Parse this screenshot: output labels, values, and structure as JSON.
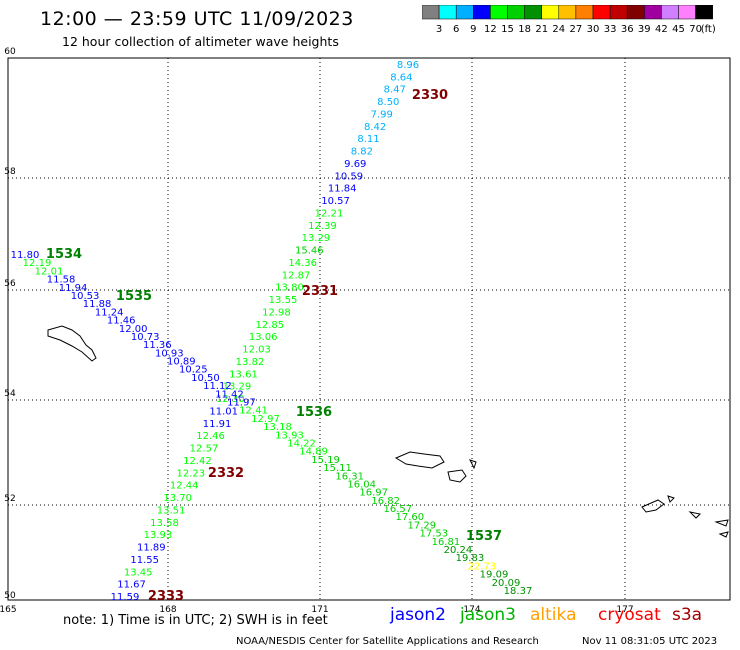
{
  "header": {
    "title": "12:00 — 23:59 UTC 11/09/2023",
    "subtitle": "12 hour collection of altimeter wave heights"
  },
  "colorbar": {
    "colors": [
      "#808080",
      "#00ffff",
      "#00b0ff",
      "#0000ff",
      "#00ff00",
      "#00d000",
      "#009000",
      "#ffff00",
      "#ffc000",
      "#ff8000",
      "#ff0000",
      "#c00000",
      "#800000",
      "#a000a0",
      "#d080ff",
      "#ff80ff",
      "#000000"
    ],
    "labels": [
      "3",
      "6",
      "9",
      "12",
      "15",
      "18",
      "21",
      "24",
      "27",
      "30",
      "33",
      "36",
      "39",
      "42",
      "45",
      "70"
    ],
    "unit": "(ft)"
  },
  "axes": {
    "lat_labels": [
      "60",
      "58",
      "56",
      "54",
      "52",
      "50"
    ],
    "lon_labels": [
      "165",
      "168",
      "171",
      "174",
      "177"
    ]
  },
  "passes": [
    {
      "label": "2330",
      "color": "#800000"
    },
    {
      "label": "2331",
      "color": "#800000"
    },
    {
      "label": "2332",
      "color": "#800000"
    },
    {
      "label": "2333",
      "color": "#800000"
    },
    {
      "label": "1534",
      "color": "#008000"
    },
    {
      "label": "1535",
      "color": "#008000"
    },
    {
      "label": "1536",
      "color": "#008000"
    },
    {
      "label": "1537",
      "color": "#008000"
    }
  ],
  "wave_heights": [
    {
      "v": "8.96",
      "c": "#00b0ff"
    },
    {
      "v": "8.64",
      "c": "#00b0ff"
    },
    {
      "v": "8.47",
      "c": "#00b0ff"
    },
    {
      "v": "8.50",
      "c": "#00b0ff"
    },
    {
      "v": "7.99",
      "c": "#00b0ff"
    },
    {
      "v": "8.42",
      "c": "#00b0ff"
    },
    {
      "v": "8.11",
      "c": "#00b0ff"
    },
    {
      "v": "8.82",
      "c": "#00b0ff"
    },
    {
      "v": "9.69",
      "c": "#0000ff"
    },
    {
      "v": "10.59",
      "c": "#0000ff"
    },
    {
      "v": "11.84",
      "c": "#0000ff"
    },
    {
      "v": "10.57",
      "c": "#0000ff"
    },
    {
      "v": "12.21",
      "c": "#00ff00"
    },
    {
      "v": "12.39",
      "c": "#00ff00"
    },
    {
      "v": "13.29",
      "c": "#00ff00"
    },
    {
      "v": "15.46",
      "c": "#00d000"
    },
    {
      "v": "14.36",
      "c": "#00ff00"
    },
    {
      "v": "12.87",
      "c": "#00ff00"
    },
    {
      "v": "13.80",
      "c": "#00ff00"
    },
    {
      "v": "13.55",
      "c": "#00ff00"
    },
    {
      "v": "12.98",
      "c": "#00ff00"
    },
    {
      "v": "12.85",
      "c": "#00ff00"
    },
    {
      "v": "13.06",
      "c": "#00ff00"
    },
    {
      "v": "12.03",
      "c": "#00ff00"
    },
    {
      "v": "13.82",
      "c": "#00ff00"
    },
    {
      "v": "13.61",
      "c": "#00ff00"
    },
    {
      "v": "13.29",
      "c": "#00ff00"
    },
    {
      "v": "12.30",
      "c": "#00ff00"
    },
    {
      "v": "11.01",
      "c": "#0000ff"
    },
    {
      "v": "11.91",
      "c": "#0000ff"
    },
    {
      "v": "12.46",
      "c": "#00ff00"
    },
    {
      "v": "12.57",
      "c": "#00ff00"
    },
    {
      "v": "12.42",
      "c": "#00ff00"
    },
    {
      "v": "12.23",
      "c": "#00ff00"
    },
    {
      "v": "12.44",
      "c": "#00ff00"
    },
    {
      "v": "13.70",
      "c": "#00ff00"
    },
    {
      "v": "13.51",
      "c": "#00ff00"
    },
    {
      "v": "13.58",
      "c": "#00ff00"
    },
    {
      "v": "13.93",
      "c": "#00ff00"
    },
    {
      "v": "11.89",
      "c": "#0000ff"
    },
    {
      "v": "11.55",
      "c": "#0000ff"
    },
    {
      "v": "13.45",
      "c": "#00ff00"
    },
    {
      "v": "11.67",
      "c": "#0000ff"
    },
    {
      "v": "11.59",
      "c": "#0000ff"
    },
    {
      "v": "11.80",
      "c": "#0000ff"
    },
    {
      "v": "12.19",
      "c": "#00ff00"
    },
    {
      "v": "12.01",
      "c": "#00ff00"
    },
    {
      "v": "11.58",
      "c": "#0000ff"
    },
    {
      "v": "11.94",
      "c": "#0000ff"
    },
    {
      "v": "10.53",
      "c": "#0000ff"
    },
    {
      "v": "11.88",
      "c": "#0000ff"
    },
    {
      "v": "11.24",
      "c": "#0000ff"
    },
    {
      "v": "11.46",
      "c": "#0000ff"
    },
    {
      "v": "12.00",
      "c": "#0000ff"
    },
    {
      "v": "10.73",
      "c": "#0000ff"
    },
    {
      "v": "11.36",
      "c": "#0000ff"
    },
    {
      "v": "10.93",
      "c": "#0000ff"
    },
    {
      "v": "10.89",
      "c": "#0000ff"
    },
    {
      "v": "10.25",
      "c": "#0000ff"
    },
    {
      "v": "10.50",
      "c": "#0000ff"
    },
    {
      "v": "11.12",
      "c": "#0000ff"
    },
    {
      "v": "11.42",
      "c": "#0000ff"
    },
    {
      "v": "11.97",
      "c": "#0000ff"
    },
    {
      "v": "12.41",
      "c": "#00ff00"
    },
    {
      "v": "12.97",
      "c": "#00ff00"
    },
    {
      "v": "13.18",
      "c": "#00ff00"
    },
    {
      "v": "13.93",
      "c": "#00ff00"
    },
    {
      "v": "14.22",
      "c": "#00ff00"
    },
    {
      "v": "14.89",
      "c": "#00ff00"
    },
    {
      "v": "15.19",
      "c": "#00d000"
    },
    {
      "v": "15.11",
      "c": "#00d000"
    },
    {
      "v": "16.31",
      "c": "#00d000"
    },
    {
      "v": "16.04",
      "c": "#00d000"
    },
    {
      "v": "16.97",
      "c": "#00d000"
    },
    {
      "v": "16.82",
      "c": "#00d000"
    },
    {
      "v": "16.57",
      "c": "#00d000"
    },
    {
      "v": "17.60",
      "c": "#00d000"
    },
    {
      "v": "17.29",
      "c": "#00d000"
    },
    {
      "v": "17.53",
      "c": "#00d000"
    },
    {
      "v": "16.81",
      "c": "#00d000"
    },
    {
      "v": "20.24",
      "c": "#009000"
    },
    {
      "v": "19.83",
      "c": "#009000"
    },
    {
      "v": "22.73",
      "c": "#ffff00"
    },
    {
      "v": "19.09",
      "c": "#009000"
    },
    {
      "v": "20.09",
      "c": "#009000"
    },
    {
      "v": "18.37",
      "c": "#009000"
    }
  ],
  "note": "note:  1) Time is in UTC; 2) SWH is in feet",
  "legend": [
    {
      "label": "jason2",
      "color": "#0000ff"
    },
    {
      "label": "jason3",
      "color": "#00b000"
    },
    {
      "label": "altika",
      "color": "#ffa000"
    },
    {
      "label": "cryosat",
      "color": "#ff0000"
    },
    {
      "label": "s3a",
      "color": "#a00000"
    }
  ],
  "footer": {
    "agency": "NOAA/NESDIS Center for Satellite Applications and Research",
    "timestamp": "Nov 11 08:31:05 UTC 2023"
  }
}
